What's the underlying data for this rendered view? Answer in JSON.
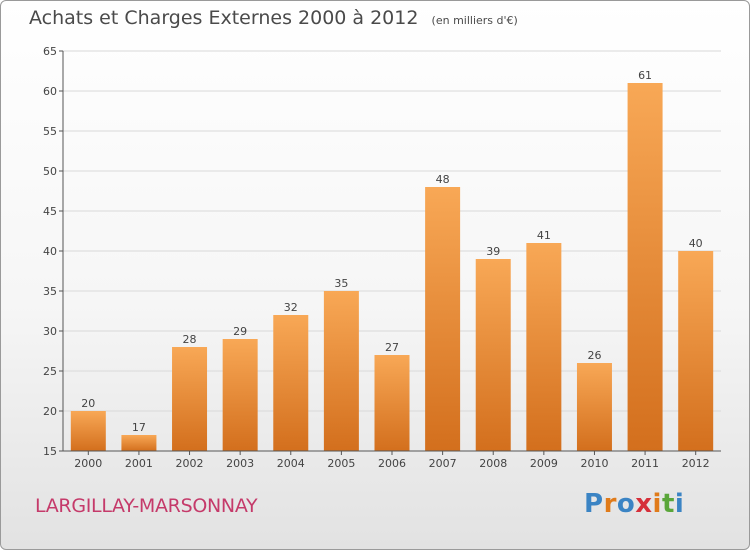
{
  "title": "Achats et Charges Externes 2000 à 2012",
  "subtitle": "(en milliers d'€)",
  "location": "LARGILLAY-MARSONNAY",
  "brand": {
    "text": "Proxiti",
    "letter_colors": [
      "#3b84c4",
      "#e07b1a",
      "#3b84c4",
      "#d62f3a",
      "#e07b1a",
      "#5aa63a",
      "#3b84c4"
    ]
  },
  "colors": {
    "bar_light": "#f8a856",
    "bar_dark": "#d36f1d",
    "axis": "#555555",
    "grid": "#d9d9d9",
    "text": "#444444"
  },
  "chart_data": {
    "type": "bar",
    "categories": [
      "2000",
      "2001",
      "2002",
      "2003",
      "2004",
      "2005",
      "2006",
      "2007",
      "2008",
      "2009",
      "2010",
      "2011",
      "2012"
    ],
    "values": [
      20,
      17,
      28,
      29,
      32,
      35,
      27,
      48,
      39,
      41,
      26,
      61,
      40
    ],
    "ylim": [
      15,
      65
    ],
    "yticks": [
      15,
      20,
      25,
      30,
      35,
      40,
      45,
      50,
      55,
      60,
      65
    ],
    "grid": true,
    "data_labels": true,
    "xlabel": "",
    "ylabel": ""
  }
}
